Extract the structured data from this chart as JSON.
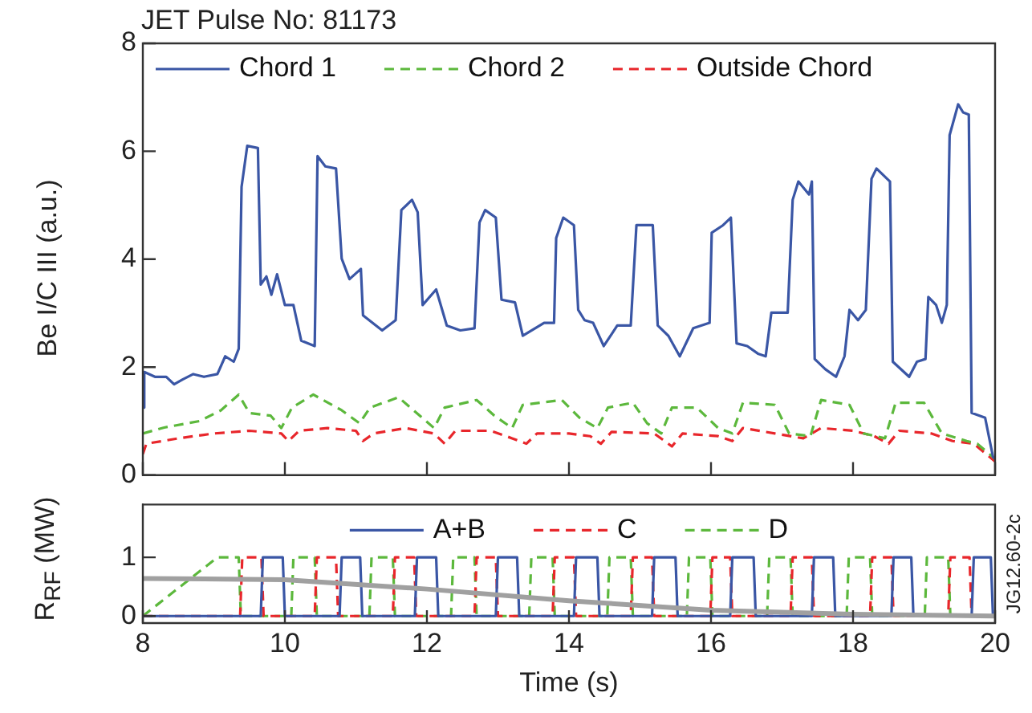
{
  "chart_data": [
    {
      "type": "line",
      "title": "JET Pulse No: 81173",
      "ylabel": "Be I/C III (a.u.)",
      "xlim": [
        8,
        20
      ],
      "xticks": [
        8,
        10,
        12,
        14,
        16,
        18,
        20
      ],
      "ylim": [
        0,
        8
      ],
      "yticks": [
        0,
        2,
        4,
        6,
        8
      ],
      "tick_labels": "y",
      "legend": "top left",
      "series": [
        {
          "name": "Chord 1",
          "color": "#3a56a5",
          "line_style": "solid",
          "x": [
            8,
            8.02,
            8.17,
            8.33,
            8.44,
            8.56,
            8.71,
            8.86,
            9.05,
            9.16,
            9.28,
            9.35,
            9.39,
            9.47,
            9.62,
            9.66,
            9.74,
            9.81,
            9.89,
            10,
            10.12,
            10.23,
            10.42,
            10.46,
            10.57,
            10.72,
            10.8,
            10.91,
            11.07,
            11.1,
            11.37,
            11.56,
            11.64,
            11.79,
            11.87,
            11.94,
            12.13,
            12.28,
            12.47,
            12.67,
            12.74,
            12.82,
            12.97,
            13.05,
            13.24,
            13.35,
            13.65,
            13.79,
            13.82,
            13.92,
            14.07,
            14.13,
            14.22,
            14.34,
            14.49,
            14.68,
            14.87,
            14.95,
            15.18,
            15.25,
            15.4,
            15.56,
            15.75,
            15.98,
            16.01,
            16.17,
            16.28,
            16.36,
            16.51,
            16.66,
            16.77,
            16.85,
            17.08,
            17.15,
            17.23,
            17.38,
            17.42,
            17.46,
            17.61,
            17.76,
            17.88,
            17.95,
            18.07,
            18.18,
            18.26,
            18.33,
            18.52,
            18.56,
            18.79,
            18.9,
            19.02,
            19.06,
            19.17,
            19.25,
            19.32,
            19.36,
            19.48,
            19.55,
            19.63,
            19.67,
            19.86,
            19.97,
            20
          ],
          "values": [
            1.25,
            1.91,
            1.82,
            1.82,
            1.68,
            1.77,
            1.87,
            1.82,
            1.87,
            2.2,
            2.1,
            2.34,
            5.34,
            6.1,
            6.06,
            3.53,
            3.68,
            3.34,
            3.72,
            3.15,
            3.15,
            2.49,
            2.39,
            5.91,
            5.72,
            5.68,
            4.01,
            3.63,
            3.82,
            2.96,
            2.68,
            2.87,
            4.91,
            5.1,
            4.87,
            3.15,
            3.44,
            2.77,
            2.68,
            2.72,
            4.68,
            4.91,
            4.77,
            3.25,
            3.2,
            2.58,
            2.82,
            2.82,
            4.39,
            4.77,
            4.63,
            3.06,
            2.87,
            2.82,
            2.39,
            2.77,
            2.77,
            4.63,
            4.63,
            2.77,
            2.58,
            2.2,
            2.72,
            2.82,
            4.49,
            4.63,
            4.77,
            2.44,
            2.39,
            2.25,
            2.2,
            3.01,
            3.01,
            5.1,
            5.44,
            5.2,
            5.44,
            2.15,
            1.96,
            1.82,
            2.2,
            3.06,
            2.87,
            3.06,
            5.49,
            5.68,
            5.44,
            2.1,
            1.82,
            2.1,
            2.15,
            3.3,
            3.15,
            2.82,
            3.15,
            6.3,
            6.87,
            6.72,
            6.68,
            1.15,
            1.06,
            0.34,
            0.3
          ]
        },
        {
          "name": "Chord 2",
          "color": "#5cb83c",
          "line_style": "dashed",
          "x": [
            8,
            8.3,
            8.8,
            9.1,
            9.35,
            9.5,
            9.8,
            9.95,
            10.1,
            10.4,
            10.8,
            11.05,
            11.2,
            11.6,
            11.9,
            12.1,
            12.25,
            12.7,
            12.95,
            13.2,
            13.35,
            13.9,
            14.15,
            14.4,
            14.55,
            14.9,
            15.1,
            15.3,
            15.45,
            15.8,
            16.1,
            16.3,
            16.45,
            16.9,
            17.1,
            17.4,
            17.55,
            17.95,
            18.15,
            18.45,
            18.6,
            19,
            19.25,
            19.6,
            19.75,
            20
          ],
          "values": [
            0.77,
            0.88,
            1,
            1.2,
            1.49,
            1.15,
            1.1,
            0.87,
            1.25,
            1.49,
            1.2,
            0.96,
            1.25,
            1.44,
            1.1,
            0.87,
            1.25,
            1.39,
            1.1,
            0.87,
            1.3,
            1.39,
            1.06,
            0.87,
            1.25,
            1.34,
            0.96,
            0.77,
            1.25,
            1.25,
            0.87,
            0.77,
            1.34,
            1.3,
            0.77,
            0.72,
            1.39,
            1.3,
            0.77,
            0.68,
            1.34,
            1.34,
            0.77,
            0.63,
            0.58,
            0.3
          ]
        },
        {
          "name": "Outside Chord",
          "color": "#e8262b",
          "line_style": "dashed",
          "x": [
            8,
            8.05,
            8.5,
            9,
            9.5,
            9.95,
            10.05,
            10.2,
            10.6,
            11,
            11.1,
            11.25,
            11.7,
            12.1,
            12.25,
            12.4,
            12.9,
            13.2,
            13.4,
            13.55,
            14,
            14.3,
            14.45,
            14.6,
            15.2,
            15.45,
            15.6,
            16.1,
            16.3,
            16.45,
            16.9,
            17.3,
            17.55,
            18,
            18.3,
            18.5,
            18.65,
            19.1,
            19.4,
            19.7,
            20
          ],
          "values": [
            0.39,
            0.58,
            0.68,
            0.77,
            0.82,
            0.77,
            0.63,
            0.82,
            0.87,
            0.82,
            0.63,
            0.77,
            0.87,
            0.77,
            0.58,
            0.82,
            0.82,
            0.68,
            0.58,
            0.77,
            0.77,
            0.72,
            0.58,
            0.8,
            0.77,
            0.53,
            0.77,
            0.72,
            0.63,
            0.87,
            0.77,
            0.68,
            0.87,
            0.82,
            0.72,
            0.58,
            0.82,
            0.77,
            0.63,
            0.58,
            0.25
          ]
        }
      ]
    },
    {
      "type": "line",
      "xlabel": "Time (s)",
      "ylabel": "R$_{RF}$ (MW)",
      "xlim": [
        8,
        20
      ],
      "xticks": [
        8,
        10,
        12,
        14,
        16,
        18,
        20
      ],
      "ylim": [
        -0.12,
        1.9
      ],
      "yticks": [
        0,
        1
      ],
      "legend": "top",
      "annotations": [
        "JG12.60-2c"
      ],
      "series": [
        {
          "color": "#a0a0a0",
          "line_style": "solid",
          "x": [
            8,
            10,
            12,
            14,
            16,
            18,
            20
          ],
          "values": [
            0.64,
            0.62,
            0.46,
            0.26,
            0.1,
            0.03,
            0
          ]
        },
        {
          "name": "A+B",
          "color": "#3a56a5",
          "line_style": "solid",
          "x": [
            8,
            9.66,
            9.69,
            9.97,
            10,
            10.77,
            10.8,
            11.06,
            11.09,
            11.83,
            11.86,
            12.13,
            12.16,
            12.97,
            13,
            13.27,
            13.3,
            14.07,
            14.1,
            14.4,
            14.43,
            15.17,
            15.2,
            15.5,
            15.53,
            16.27,
            16.3,
            16.6,
            16.63,
            17.42,
            17.45,
            17.72,
            17.75,
            18.54,
            18.57,
            18.82,
            18.85,
            19.67,
            19.7,
            19.94,
            19.97,
            20
          ],
          "values": [
            0,
            0,
            1,
            1,
            0,
            0,
            1,
            1,
            0,
            0,
            1,
            1,
            0,
            0,
            1,
            1,
            0,
            0,
            1,
            1,
            0,
            0,
            1,
            1,
            0,
            0,
            1,
            1,
            0,
            0,
            1,
            1,
            0,
            0,
            1,
            1,
            0,
            0,
            1,
            1,
            0,
            0
          ]
        },
        {
          "name": "C",
          "color": "#e8262b",
          "line_style": "dashed",
          "x": [
            8,
            9.37,
            9.4,
            9.67,
            9.7,
            10.42,
            10.45,
            10.72,
            10.75,
            11.52,
            11.55,
            11.82,
            11.85,
            12.67,
            12.7,
            12.97,
            13,
            13.77,
            13.8,
            14.07,
            14.1,
            14.87,
            14.9,
            15.17,
            15.2,
            15.99,
            16.02,
            16.27,
            16.3,
            17.12,
            17.15,
            17.42,
            17.45,
            18.24,
            18.27,
            18.54,
            18.57,
            19.34,
            19.37,
            19.64,
            19.67,
            20
          ],
          "values": [
            0,
            0,
            1,
            1,
            0,
            0,
            1,
            1,
            0,
            0,
            1,
            1,
            0,
            0,
            1,
            1,
            0,
            0,
            1,
            1,
            0,
            0,
            1,
            1,
            0,
            0,
            1,
            1,
            0,
            0,
            1,
            1,
            0,
            0,
            1,
            1,
            0,
            0,
            1,
            1,
            0,
            0
          ]
        },
        {
          "name": "D",
          "color": "#5cb83c",
          "line_style": "dashed",
          "x": [
            8,
            9.05,
            9.35,
            9.38,
            10.09,
            10.12,
            10.42,
            10.45,
            11.19,
            11.22,
            11.52,
            11.55,
            12.34,
            12.37,
            12.67,
            12.7,
            13.44,
            13.47,
            13.77,
            13.8,
            14.54,
            14.57,
            14.87,
            14.9,
            15.66,
            15.69,
            15.99,
            16.02,
            16.79,
            16.82,
            17.12,
            17.15,
            17.91,
            17.94,
            18.24,
            18.27,
            19.01,
            19.04,
            19.34,
            19.37,
            20
          ],
          "values": [
            0,
            1,
            1,
            0,
            0,
            1,
            1,
            0,
            0,
            1,
            1,
            0,
            0,
            1,
            1,
            0,
            0,
            1,
            1,
            0,
            0,
            1,
            1,
            0,
            0,
            1,
            1,
            0,
            0,
            1,
            1,
            0,
            0,
            1,
            1,
            0,
            0,
            1,
            1,
            0,
            0
          ]
        }
      ]
    }
  ]
}
